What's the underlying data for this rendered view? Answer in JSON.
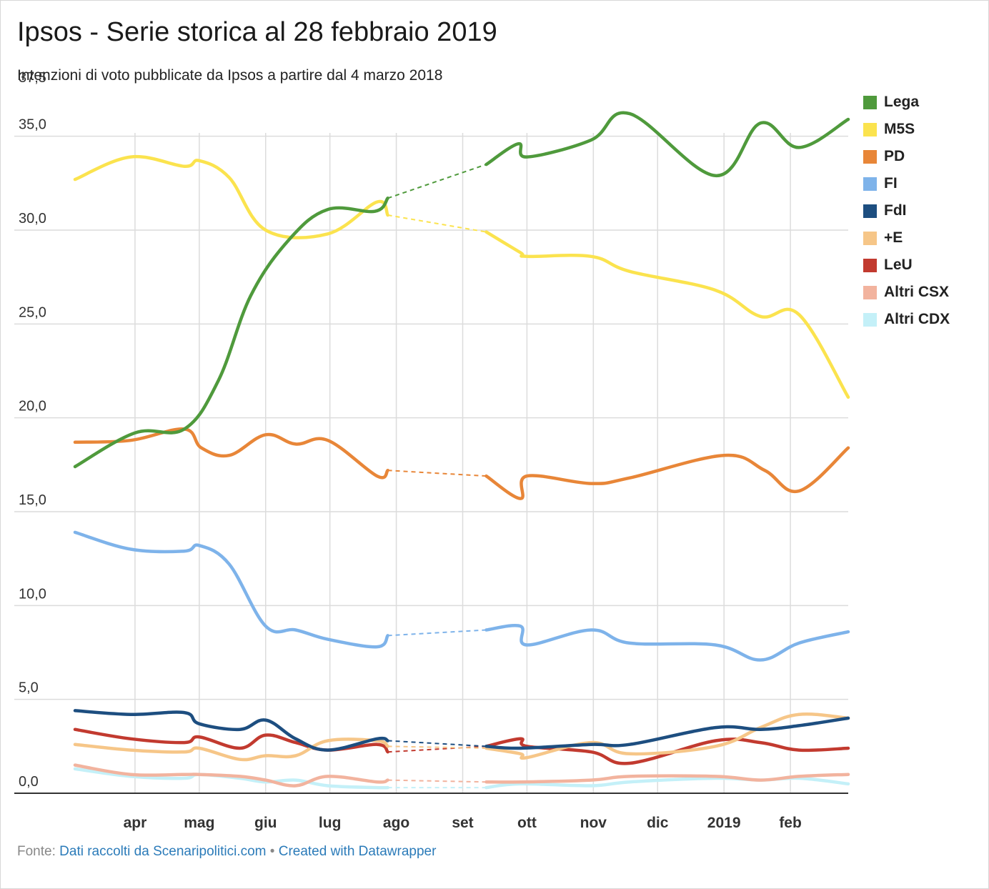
{
  "chart_data": {
    "type": "line",
    "title": "Ipsos - Serie storica al 28 febbraio 2019",
    "subtitle": "Intenzioni di voto pubblicate da Ipsos a partire dal 4 marzo 2018",
    "ylim": [
      0,
      37.5
    ],
    "yticks": [
      "0,0",
      "5,0",
      "10,0",
      "15,0",
      "20,0",
      "25,0",
      "30,0",
      "35,0",
      "37,5"
    ],
    "ytick_values": [
      0,
      5,
      10,
      15,
      20,
      25,
      30,
      35,
      37.5
    ],
    "xticks": [
      {
        "label": "apr",
        "date": "2018-04-01"
      },
      {
        "label": "mag",
        "date": "2018-05-01"
      },
      {
        "label": "giu",
        "date": "2018-06-01"
      },
      {
        "label": "lug",
        "date": "2018-07-01"
      },
      {
        "label": "ago",
        "date": "2018-08-01"
      },
      {
        "label": "set",
        "date": "2018-09-01"
      },
      {
        "label": "ott",
        "date": "2018-10-01"
      },
      {
        "label": "nov",
        "date": "2018-11-01"
      },
      {
        "label": "dic",
        "date": "2018-12-01"
      },
      {
        "label": "2019",
        "date": "2019-01-01"
      },
      {
        "label": "feb",
        "date": "2019-02-01"
      }
    ],
    "xlim": [
      "2018-03-04",
      "2019-02-28"
    ],
    "gap": [
      "2018-07-28",
      "2018-09-12"
    ],
    "grid": true,
    "legend_position": "right",
    "series": [
      {
        "name": "Lega",
        "color": "#4f9a3c",
        "points": [
          [
            "2018-03-04",
            17.4
          ],
          [
            "2018-04-01",
            19.2
          ],
          [
            "2018-04-24",
            19.4
          ],
          [
            "2018-05-10",
            22.0
          ],
          [
            "2018-05-25",
            26.5
          ],
          [
            "2018-06-12",
            29.5
          ],
          [
            "2018-06-30",
            31.1
          ],
          [
            "2018-07-22",
            31.0
          ],
          [
            "2018-07-28",
            31.7
          ],
          [
            "2018-09-12",
            33.5
          ],
          [
            "2018-09-27",
            34.6
          ],
          [
            "2018-10-01",
            33.9
          ],
          [
            "2018-10-31",
            34.8
          ],
          [
            "2018-11-18",
            36.2
          ],
          [
            "2018-12-28",
            32.9
          ],
          [
            "2019-01-18",
            35.7
          ],
          [
            "2019-02-05",
            34.4
          ],
          [
            "2019-02-28",
            35.9
          ]
        ]
      },
      {
        "name": "M5S",
        "color": "#fbe34e",
        "points": [
          [
            "2018-03-04",
            32.7
          ],
          [
            "2018-03-30",
            33.9
          ],
          [
            "2018-04-24",
            33.4
          ],
          [
            "2018-05-01",
            33.7
          ],
          [
            "2018-05-15",
            32.8
          ],
          [
            "2018-06-01",
            30.0
          ],
          [
            "2018-06-30",
            29.8
          ],
          [
            "2018-07-23",
            31.5
          ],
          [
            "2018-07-28",
            30.8
          ],
          [
            "2018-09-12",
            29.9
          ],
          [
            "2018-09-28",
            28.8
          ],
          [
            "2018-10-01",
            28.6
          ],
          [
            "2018-10-31",
            28.6
          ],
          [
            "2018-11-18",
            27.8
          ],
          [
            "2018-12-28",
            26.8
          ],
          [
            "2019-01-18",
            25.4
          ],
          [
            "2019-02-05",
            25.5
          ],
          [
            "2019-02-28",
            21.1
          ]
        ]
      },
      {
        "name": "PD",
        "color": "#e88638",
        "points": [
          [
            "2018-03-04",
            18.7
          ],
          [
            "2018-03-30",
            18.8
          ],
          [
            "2018-04-24",
            19.4
          ],
          [
            "2018-05-02",
            18.4
          ],
          [
            "2018-05-15",
            18.0
          ],
          [
            "2018-06-01",
            19.1
          ],
          [
            "2018-06-15",
            18.6
          ],
          [
            "2018-06-30",
            18.8
          ],
          [
            "2018-07-23",
            16.9
          ],
          [
            "2018-07-28",
            17.2
          ],
          [
            "2018-09-12",
            16.9
          ],
          [
            "2018-09-28",
            15.7
          ],
          [
            "2018-10-01",
            16.9
          ],
          [
            "2018-10-31",
            16.5
          ],
          [
            "2018-11-18",
            16.8
          ],
          [
            "2019-01-01",
            18.0
          ],
          [
            "2019-01-20",
            17.2
          ],
          [
            "2019-02-05",
            16.1
          ],
          [
            "2019-02-28",
            18.4
          ]
        ]
      },
      {
        "name": "FI",
        "color": "#7eb3ea",
        "points": [
          [
            "2018-03-04",
            13.9
          ],
          [
            "2018-03-30",
            13.0
          ],
          [
            "2018-04-24",
            12.9
          ],
          [
            "2018-05-01",
            13.2
          ],
          [
            "2018-05-15",
            12.2
          ],
          [
            "2018-06-01",
            8.9
          ],
          [
            "2018-06-15",
            8.7
          ],
          [
            "2018-06-30",
            8.2
          ],
          [
            "2018-07-23",
            7.8
          ],
          [
            "2018-07-28",
            8.4
          ],
          [
            "2018-09-12",
            8.7
          ],
          [
            "2018-09-28",
            8.9
          ],
          [
            "2018-10-01",
            7.9
          ],
          [
            "2018-10-31",
            8.7
          ],
          [
            "2018-11-18",
            8.0
          ],
          [
            "2018-12-28",
            7.9
          ],
          [
            "2019-01-18",
            7.1
          ],
          [
            "2019-02-05",
            8.0
          ],
          [
            "2019-02-28",
            8.6
          ]
        ]
      },
      {
        "name": "FdI",
        "color": "#1d4e80",
        "points": [
          [
            "2018-03-04",
            4.4
          ],
          [
            "2018-03-30",
            4.2
          ],
          [
            "2018-04-24",
            4.3
          ],
          [
            "2018-05-01",
            3.7
          ],
          [
            "2018-05-20",
            3.4
          ],
          [
            "2018-06-01",
            3.9
          ],
          [
            "2018-06-15",
            2.9
          ],
          [
            "2018-06-30",
            2.3
          ],
          [
            "2018-07-23",
            2.9
          ],
          [
            "2018-07-28",
            2.8
          ],
          [
            "2018-09-12",
            2.5
          ],
          [
            "2018-09-28",
            2.4
          ],
          [
            "2018-10-31",
            2.6
          ],
          [
            "2018-11-18",
            2.6
          ],
          [
            "2018-12-28",
            3.5
          ],
          [
            "2019-01-18",
            3.4
          ],
          [
            "2019-02-05",
            3.6
          ],
          [
            "2019-02-28",
            4.0
          ]
        ]
      },
      {
        "name": "+E",
        "color": "#f6c688",
        "points": [
          [
            "2018-03-04",
            2.6
          ],
          [
            "2018-03-30",
            2.3
          ],
          [
            "2018-04-24",
            2.2
          ],
          [
            "2018-05-01",
            2.4
          ],
          [
            "2018-05-20",
            1.8
          ],
          [
            "2018-06-01",
            2.0
          ],
          [
            "2018-06-15",
            2.0
          ],
          [
            "2018-06-30",
            2.8
          ],
          [
            "2018-07-23",
            2.8
          ],
          [
            "2018-07-28",
            2.5
          ],
          [
            "2018-09-12",
            2.4
          ],
          [
            "2018-09-28",
            2.1
          ],
          [
            "2018-10-01",
            1.9
          ],
          [
            "2018-10-31",
            2.7
          ],
          [
            "2018-11-18",
            2.1
          ],
          [
            "2018-12-28",
            2.5
          ],
          [
            "2019-01-18",
            3.5
          ],
          [
            "2019-02-05",
            4.2
          ],
          [
            "2019-02-28",
            4.0
          ]
        ]
      },
      {
        "name": "LeU",
        "color": "#c23a2f",
        "points": [
          [
            "2018-03-04",
            3.4
          ],
          [
            "2018-03-30",
            2.9
          ],
          [
            "2018-04-24",
            2.7
          ],
          [
            "2018-05-01",
            3.0
          ],
          [
            "2018-05-20",
            2.4
          ],
          [
            "2018-06-01",
            3.1
          ],
          [
            "2018-06-15",
            2.7
          ],
          [
            "2018-06-30",
            2.3
          ],
          [
            "2018-07-23",
            2.6
          ],
          [
            "2018-07-28",
            2.2
          ],
          [
            "2018-09-12",
            2.5
          ],
          [
            "2018-09-28",
            2.9
          ],
          [
            "2018-10-01",
            2.5
          ],
          [
            "2018-10-31",
            2.2
          ],
          [
            "2018-11-18",
            1.6
          ],
          [
            "2018-12-28",
            2.8
          ],
          [
            "2019-01-18",
            2.7
          ],
          [
            "2019-02-05",
            2.3
          ],
          [
            "2019-02-28",
            2.4
          ]
        ]
      },
      {
        "name": "Altri CSX",
        "color": "#f2b39e",
        "points": [
          [
            "2018-03-04",
            1.5
          ],
          [
            "2018-03-30",
            1.0
          ],
          [
            "2018-04-24",
            1.0
          ],
          [
            "2018-05-01",
            1.0
          ],
          [
            "2018-05-20",
            0.9
          ],
          [
            "2018-06-01",
            0.7
          ],
          [
            "2018-06-15",
            0.4
          ],
          [
            "2018-06-30",
            0.9
          ],
          [
            "2018-07-23",
            0.6
          ],
          [
            "2018-07-28",
            0.7
          ],
          [
            "2018-09-12",
            0.6
          ],
          [
            "2018-09-28",
            0.6
          ],
          [
            "2018-10-31",
            0.7
          ],
          [
            "2018-11-18",
            0.9
          ],
          [
            "2018-12-28",
            0.9
          ],
          [
            "2019-01-18",
            0.7
          ],
          [
            "2019-02-05",
            0.9
          ],
          [
            "2019-02-28",
            1.0
          ]
        ]
      },
      {
        "name": "Altri CDX",
        "color": "#c4f0f8",
        "points": [
          [
            "2018-03-04",
            1.3
          ],
          [
            "2018-03-30",
            0.9
          ],
          [
            "2018-04-24",
            0.8
          ],
          [
            "2018-05-01",
            1.0
          ],
          [
            "2018-05-20",
            0.8
          ],
          [
            "2018-06-01",
            0.6
          ],
          [
            "2018-06-15",
            0.7
          ],
          [
            "2018-06-30",
            0.4
          ],
          [
            "2018-07-23",
            0.3
          ],
          [
            "2018-07-28",
            0.3
          ],
          [
            "2018-09-12",
            0.3
          ],
          [
            "2018-09-28",
            0.5
          ],
          [
            "2018-10-31",
            0.4
          ],
          [
            "2018-11-18",
            0.6
          ],
          [
            "2018-12-28",
            0.8
          ],
          [
            "2019-01-18",
            0.7
          ],
          [
            "2019-02-05",
            0.8
          ],
          [
            "2019-02-28",
            0.5
          ]
        ]
      }
    ]
  },
  "footer": {
    "prefix": "Fonte: ",
    "source_link": "Dati raccolti da Scenaripolitici.com",
    "separator": " • ",
    "credit_link": "Created with Datawrapper"
  }
}
